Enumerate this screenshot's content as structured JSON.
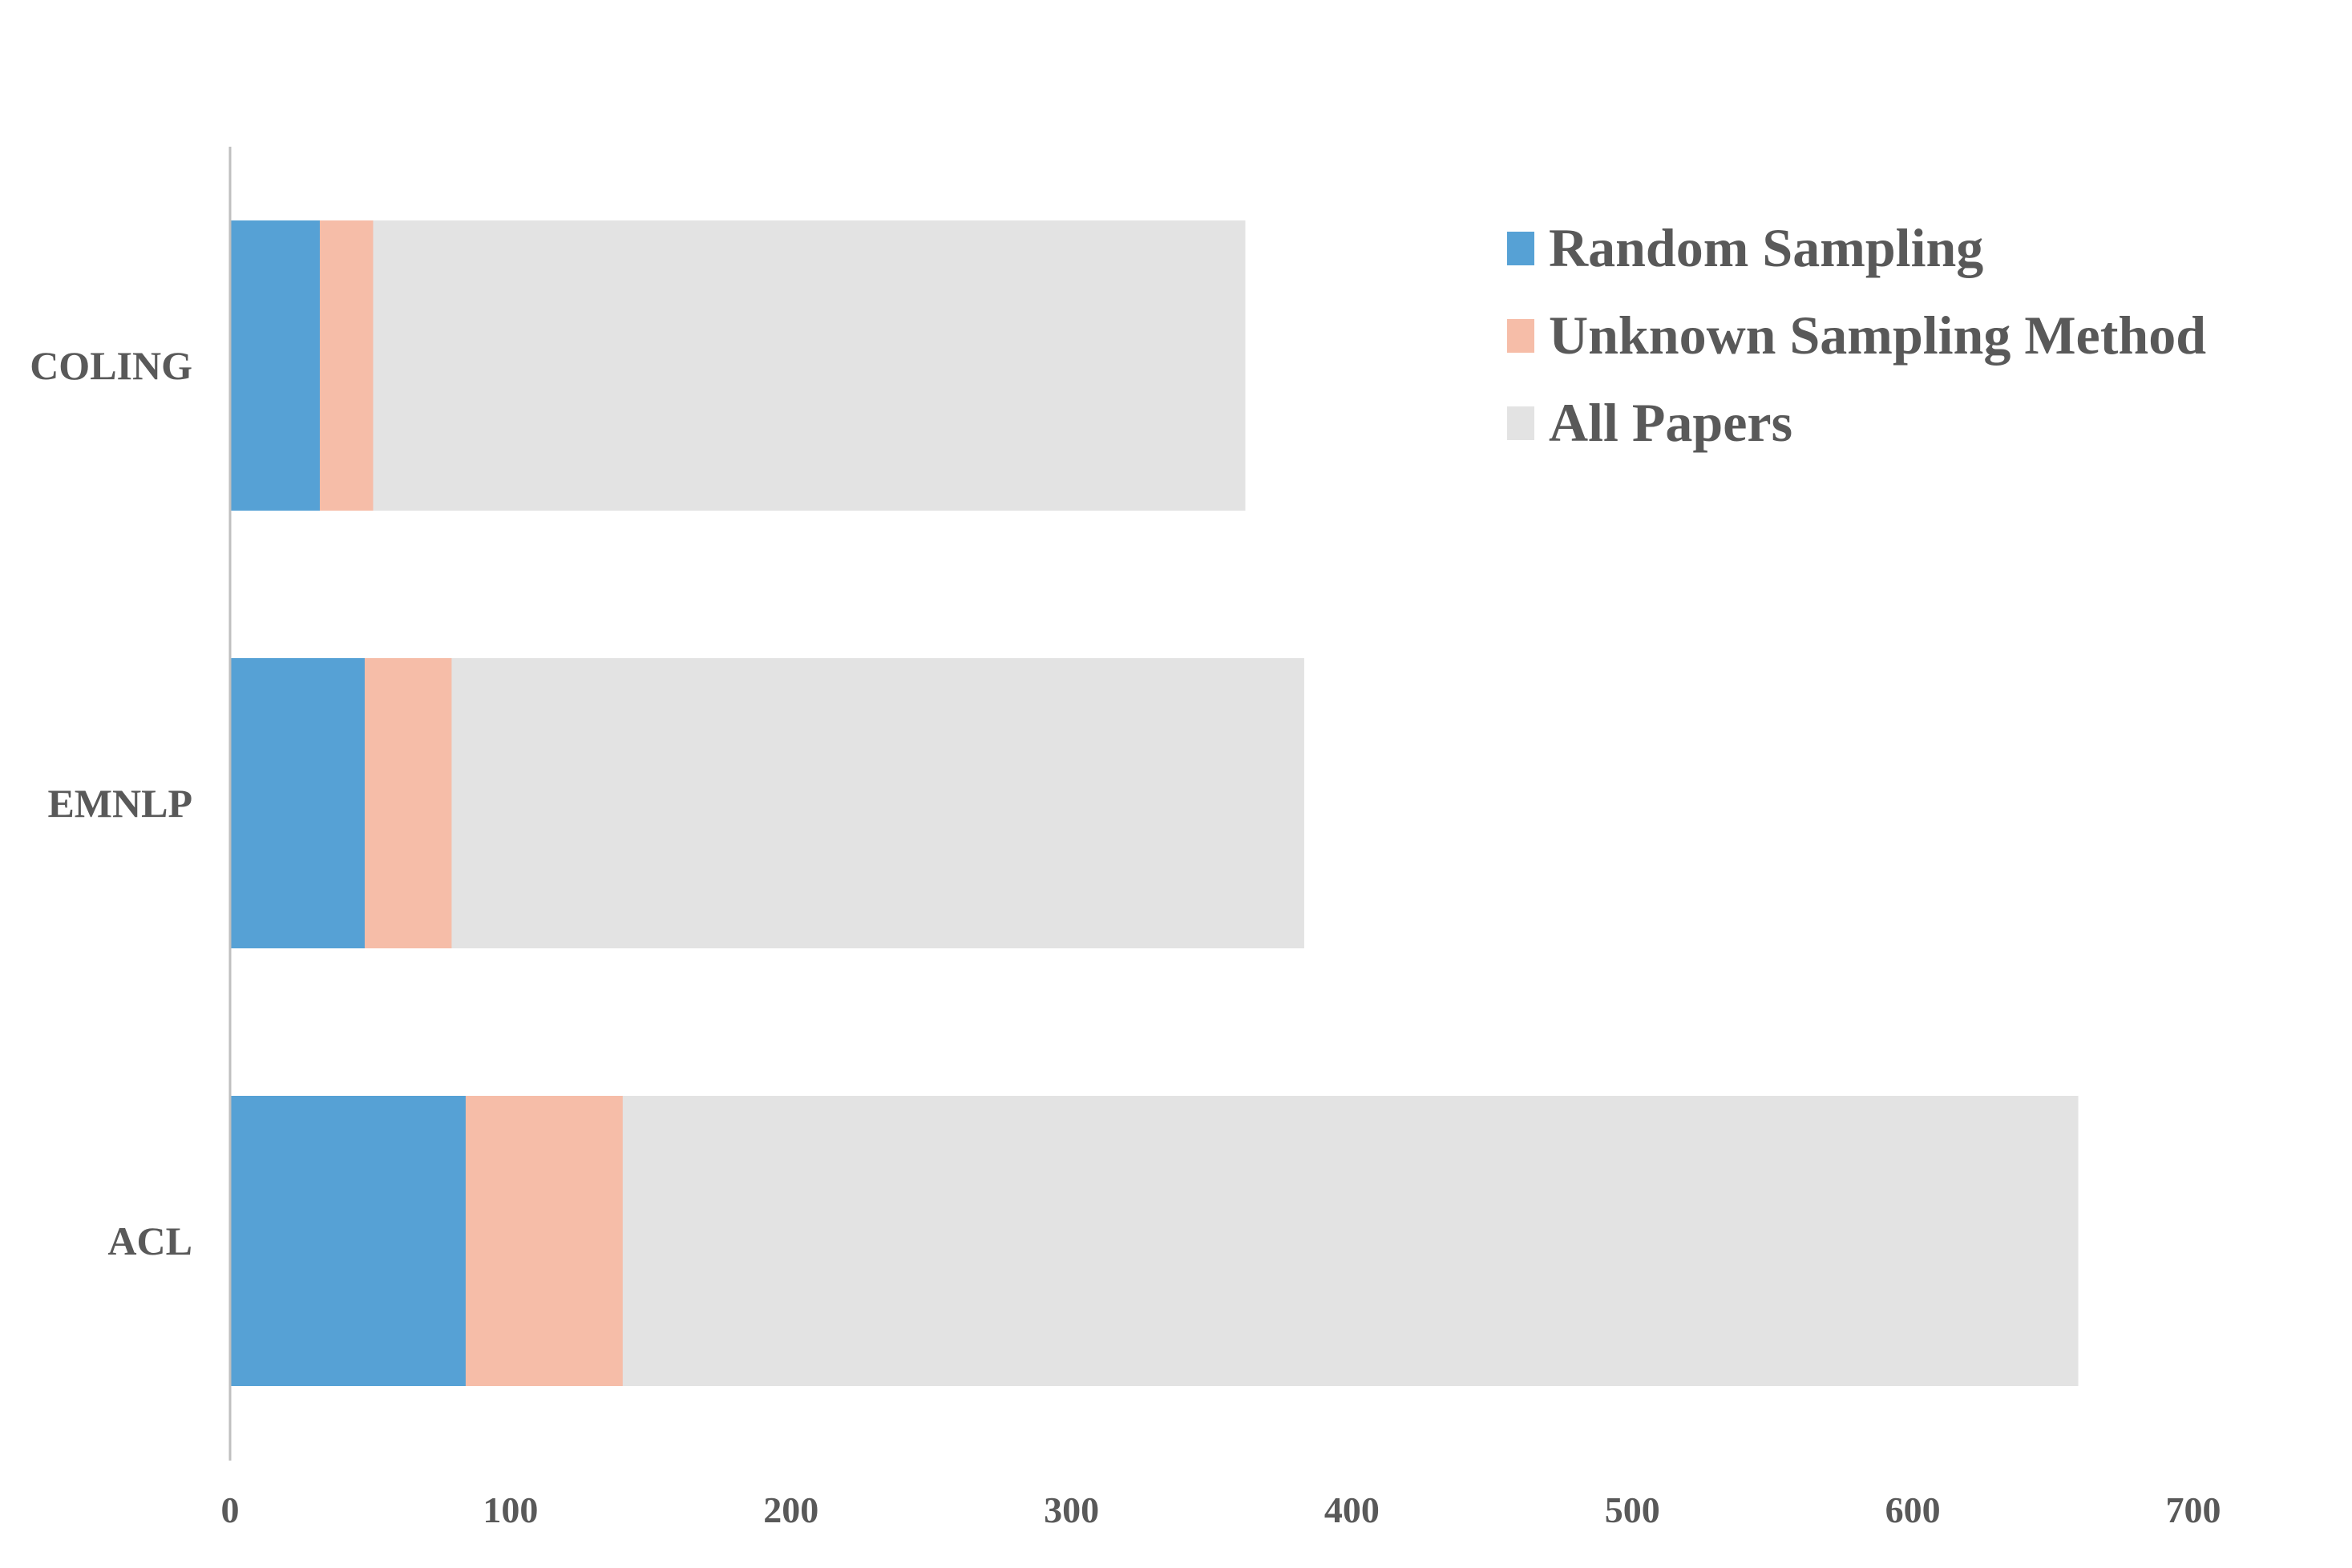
{
  "chart_data": {
    "type": "bar",
    "orientation": "horizontal",
    "categories": [
      "COLING",
      "EMNLP",
      "ACL"
    ],
    "series": [
      {
        "name": "Random Sampling",
        "values": [
          32,
          48,
          84
        ],
        "color": "#56A1D5"
      },
      {
        "name": "Unknown Sampling Method",
        "values": [
          51,
          79,
          140
        ],
        "color": "#F6BDA8"
      },
      {
        "name": "All Papers",
        "values": [
          362,
          383,
          659
        ],
        "color": "#E3E3E3"
      }
    ],
    "overlay": true,
    "xlim": [
      0,
      700
    ],
    "xticks": [
      "0",
      "100",
      "200",
      "300",
      "400",
      "500",
      "600",
      "700"
    ],
    "grid": false,
    "legend_position": "top-right",
    "title": "",
    "xlabel": "",
    "ylabel": ""
  }
}
